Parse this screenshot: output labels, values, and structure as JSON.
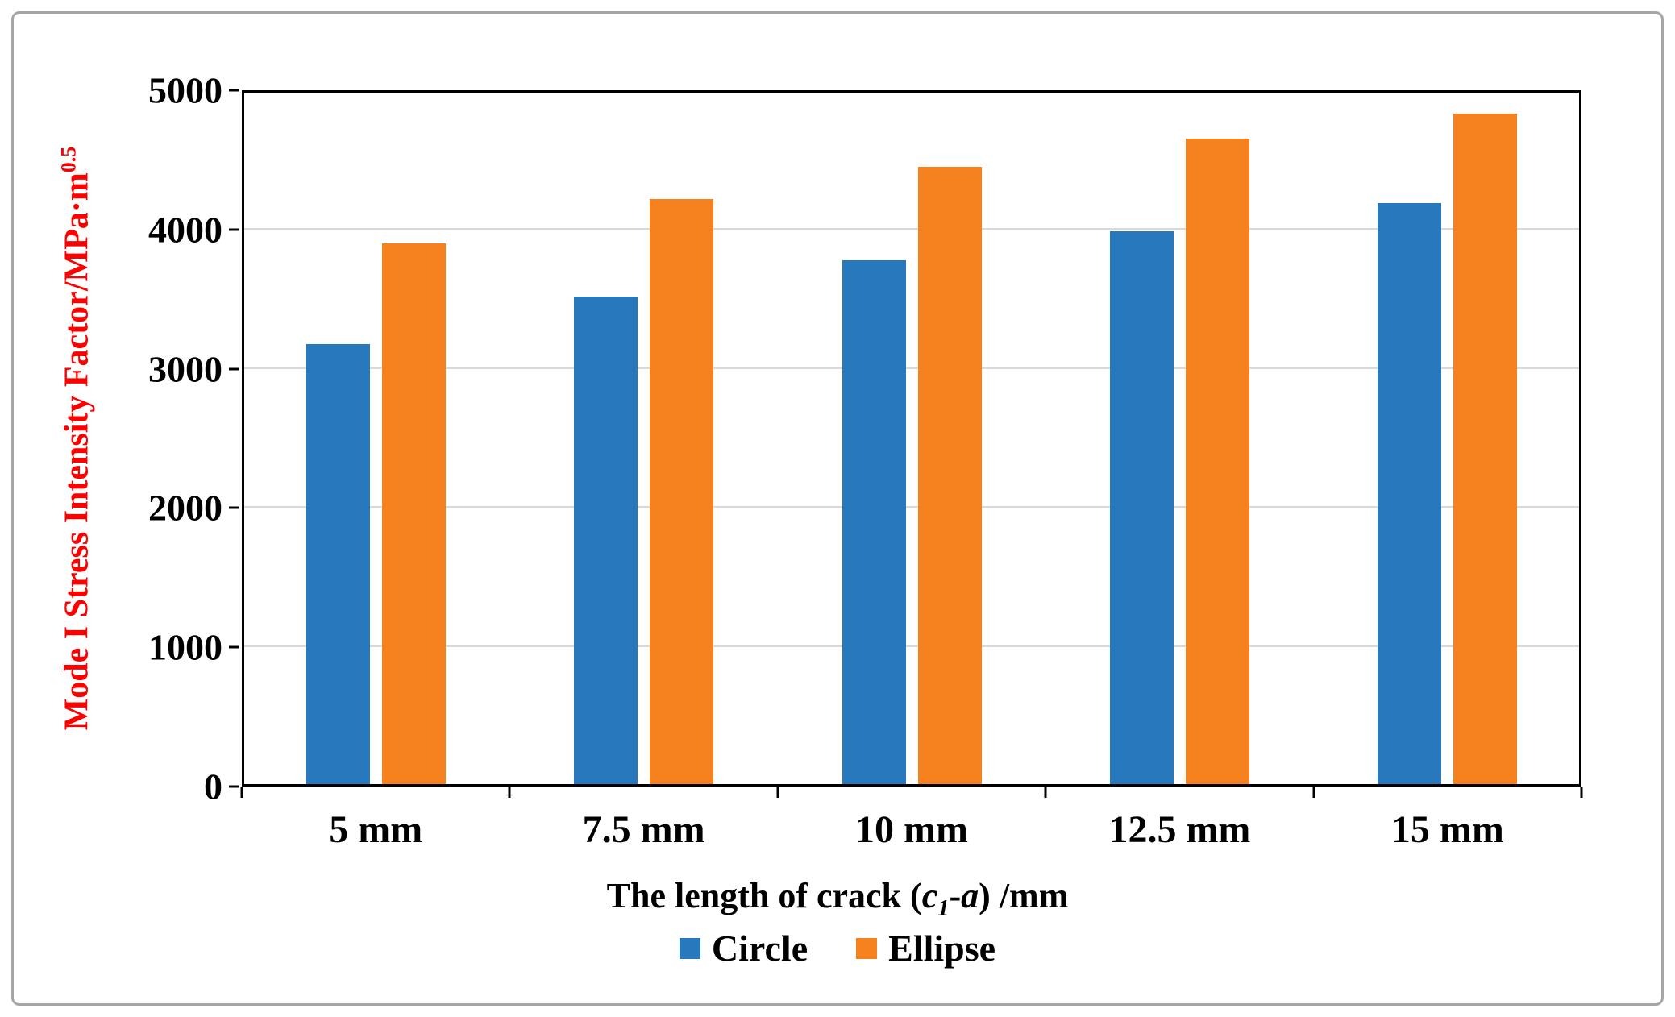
{
  "chart_data": {
    "type": "bar",
    "categories": [
      "5 mm",
      "7.5 mm",
      "10 mm",
      "12.5 mm",
      "15 mm"
    ],
    "series": [
      {
        "name": "Circle",
        "color": "#2878BD",
        "values": [
          3180,
          3520,
          3780,
          3990,
          4190
        ]
      },
      {
        "name": "Ellipse",
        "color": "#F5821F",
        "values": [
          3900,
          4220,
          4450,
          4650,
          4830
        ]
      }
    ],
    "title": "",
    "xlabel": "The length of crack (c1-a) /mm",
    "ylabel": "Mode I Stress Intensity Factor/MPa·m^0.5",
    "ylabel_color": "#FF0000",
    "ylim": [
      0,
      5000
    ],
    "yticks": [
      0,
      1000,
      2000,
      3000,
      4000,
      5000
    ],
    "ytick_step": 1000,
    "grid": true,
    "legend_position": "bottom"
  },
  "labels": {
    "ylabel_main": "Mode I Stress Intensity Factor/MPa·m",
    "ylabel_sup": "0.5",
    "xlabel_prefix": "The length of crack (",
    "xlabel_var1": "c",
    "xlabel_sub": "1",
    "xlabel_dash": "-",
    "xlabel_var2": "a",
    "xlabel_suffix": ") /mm"
  }
}
